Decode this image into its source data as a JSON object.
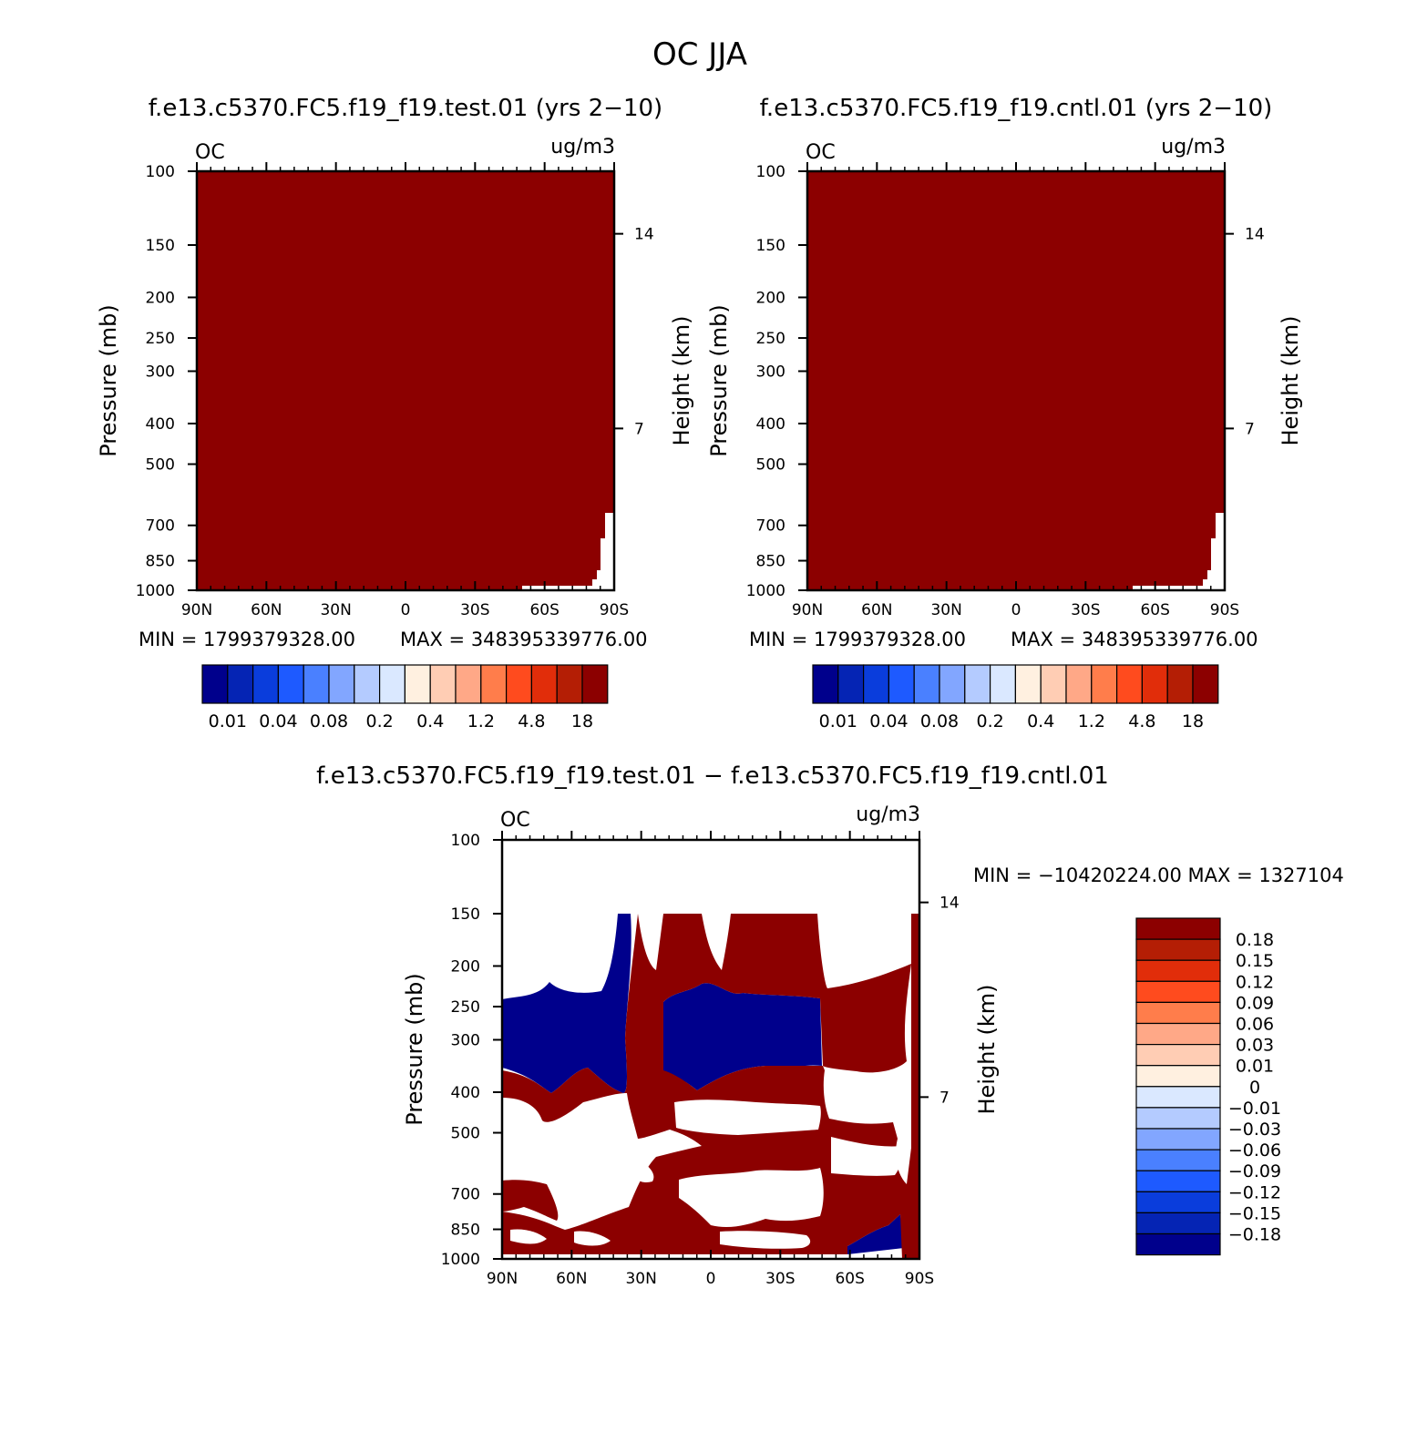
{
  "figure": {
    "title": "OC JJA",
    "panel_titles": [
      "f.e13.c5370.FC5.f19_f19.test.01 (yrs 2−10)",
      "f.e13.c5370.FC5.f19_f19.cntl.01 (yrs 2−10)",
      "f.e13.c5370.FC5.f19_f19.test.01 − f.e13.c5370.FC5.f19_f19.cntl.01"
    ]
  },
  "chart_data": [
    {
      "type": "heatmap",
      "variable": "OC",
      "units": "ug/m3",
      "xlabel": "",
      "ylabel": "Pressure (mb)",
      "ylabel_right": "Height (km)",
      "x_ticks": [
        "90N",
        "60N",
        "30N",
        "0",
        "30S",
        "60S",
        "90S"
      ],
      "y_ticks": [
        100,
        150,
        200,
        250,
        300,
        400,
        500,
        700,
        850,
        1000
      ],
      "y_ticks_right": [
        14,
        7
      ],
      "y_scale": "log",
      "ylim": [
        1000,
        100
      ],
      "min_label": "MIN = 1799379328.00",
      "max_label": "MAX = 348395339776.00",
      "colorbar": {
        "orientation": "horizontal",
        "colors": [
          "#00008c",
          "#0524b4",
          "#0a3ddc",
          "#1e5aff",
          "#4a80ff",
          "#82a6ff",
          "#b4cbff",
          "#dae8ff",
          "#fff0e0",
          "#ffcdb4",
          "#ffa887",
          "#ff7d4b",
          "#ff4b1e",
          "#e12d0a",
          "#b41e05",
          "#8c0000"
        ],
        "labels": [
          "0.01",
          "0.04",
          "0.08",
          "0.2",
          "0.4",
          "1.2",
          "4.8",
          "18"
        ]
      },
      "fill_color": "#8c0000"
    },
    {
      "type": "heatmap",
      "variable": "OC",
      "units": "ug/m3",
      "xlabel": "",
      "ylabel": "Pressure (mb)",
      "ylabel_right": "Height (km)",
      "x_ticks": [
        "90N",
        "60N",
        "30N",
        "0",
        "30S",
        "60S",
        "90S"
      ],
      "y_ticks": [
        100,
        150,
        200,
        250,
        300,
        400,
        500,
        700,
        850,
        1000
      ],
      "y_ticks_right": [
        14,
        7
      ],
      "y_scale": "log",
      "ylim": [
        1000,
        100
      ],
      "min_label": "MIN = 1799379328.00",
      "max_label": "MAX = 348395339776.00",
      "colorbar": {
        "orientation": "horizontal",
        "colors": [
          "#00008c",
          "#0524b4",
          "#0a3ddc",
          "#1e5aff",
          "#4a80ff",
          "#82a6ff",
          "#b4cbff",
          "#dae8ff",
          "#fff0e0",
          "#ffcdb4",
          "#ffa887",
          "#ff7d4b",
          "#ff4b1e",
          "#e12d0a",
          "#b41e05",
          "#8c0000"
        ],
        "labels": [
          "0.01",
          "0.04",
          "0.08",
          "0.2",
          "0.4",
          "1.2",
          "4.8",
          "18"
        ]
      },
      "fill_color": "#8c0000"
    },
    {
      "type": "heatmap",
      "variable": "OC",
      "units": "ug/m3",
      "xlabel": "",
      "ylabel": "Pressure (mb)",
      "ylabel_right": "Height (km)",
      "x_ticks": [
        "90N",
        "60N",
        "30N",
        "0",
        "30S",
        "60S",
        "90S"
      ],
      "y_ticks": [
        100,
        150,
        200,
        250,
        300,
        400,
        500,
        700,
        850,
        1000
      ],
      "y_ticks_right": [
        14,
        7
      ],
      "y_scale": "log",
      "ylim": [
        1000,
        100
      ],
      "minmax_label": "MIN = −10420224.00   MAX = 1327104",
      "colorbar": {
        "orientation": "vertical",
        "colors": [
          "#8c0000",
          "#b41e05",
          "#e12d0a",
          "#ff4b1e",
          "#ff7d4b",
          "#ffa887",
          "#ffcdb4",
          "#fff0e0",
          "#dae8ff",
          "#b4cbff",
          "#82a6ff",
          "#4a80ff",
          "#1e5aff",
          "#0a3ddc",
          "#0524b4",
          "#00008c"
        ],
        "labels": [
          "0.18",
          "0.15",
          "0.12",
          "0.09",
          "0.06",
          "0.03",
          "0.01",
          "0",
          "−0.01",
          "−0.03",
          "−0.06",
          "−0.09",
          "−0.12",
          "−0.15",
          "−0.18"
        ]
      },
      "positive_color": "#8c0000",
      "negative_color": "#00008c"
    }
  ]
}
